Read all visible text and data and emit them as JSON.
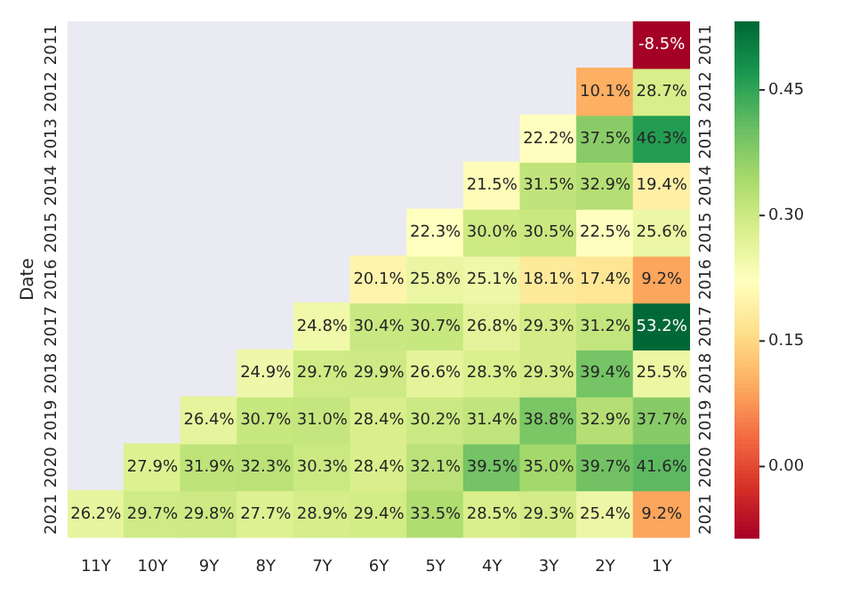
{
  "chart_data": {
    "type": "heatmap",
    "ylabel": "Date",
    "categories": [
      "11Y",
      "10Y",
      "9Y",
      "8Y",
      "7Y",
      "6Y",
      "5Y",
      "4Y",
      "3Y",
      "2Y",
      "1Y"
    ],
    "y_categories": [
      "2011",
      "2012",
      "2013",
      "2014",
      "2015",
      "2016",
      "2017",
      "2018",
      "2019",
      "2020",
      "2021"
    ],
    "y2_categories": [
      "2011",
      "2012",
      "2013",
      "2014",
      "2015",
      "2016",
      "2017",
      "2018",
      "2019",
      "2020",
      "2021"
    ],
    "cells": [
      [
        null,
        null,
        null,
        null,
        null,
        null,
        null,
        null,
        null,
        null,
        -0.085
      ],
      [
        null,
        null,
        null,
        null,
        null,
        null,
        null,
        null,
        null,
        0.101,
        0.287
      ],
      [
        null,
        null,
        null,
        null,
        null,
        null,
        null,
        null,
        0.222,
        0.375,
        0.463
      ],
      [
        null,
        null,
        null,
        null,
        null,
        null,
        null,
        0.215,
        0.315,
        0.329,
        0.194
      ],
      [
        null,
        null,
        null,
        null,
        null,
        null,
        0.223,
        0.3,
        0.305,
        0.225,
        0.256
      ],
      [
        null,
        null,
        null,
        null,
        null,
        0.201,
        0.258,
        0.251,
        0.181,
        0.174,
        0.092
      ],
      [
        null,
        null,
        null,
        null,
        0.248,
        0.304,
        0.307,
        0.268,
        0.293,
        0.312,
        0.532
      ],
      [
        null,
        null,
        null,
        0.249,
        0.297,
        0.299,
        0.266,
        0.283,
        0.293,
        0.394,
        0.255
      ],
      [
        null,
        null,
        0.264,
        0.307,
        0.31,
        0.284,
        0.302,
        0.314,
        0.388,
        0.329,
        0.377
      ],
      [
        null,
        0.279,
        0.319,
        0.323,
        0.303,
        0.284,
        0.321,
        0.395,
        0.35,
        0.397,
        0.416
      ],
      [
        0.262,
        0.297,
        0.298,
        0.277,
        0.289,
        0.294,
        0.335,
        0.285,
        0.293,
        0.254,
        0.092
      ]
    ],
    "cell_labels": [
      [
        null,
        null,
        null,
        null,
        null,
        null,
        null,
        null,
        null,
        null,
        "-8.5%"
      ],
      [
        null,
        null,
        null,
        null,
        null,
        null,
        null,
        null,
        null,
        "10.1%",
        "28.7%"
      ],
      [
        null,
        null,
        null,
        null,
        null,
        null,
        null,
        null,
        "22.2%",
        "37.5%",
        "46.3%"
      ],
      [
        null,
        null,
        null,
        null,
        null,
        null,
        null,
        "21.5%",
        "31.5%",
        "32.9%",
        "19.4%"
      ],
      [
        null,
        null,
        null,
        null,
        null,
        null,
        "22.3%",
        "30.0%",
        "30.5%",
        "22.5%",
        "25.6%"
      ],
      [
        null,
        null,
        null,
        null,
        null,
        "20.1%",
        "25.8%",
        "25.1%",
        "18.1%",
        "17.4%",
        "9.2%"
      ],
      [
        null,
        null,
        null,
        null,
        "24.8%",
        "30.4%",
        "30.7%",
        "26.8%",
        "29.3%",
        "31.2%",
        "53.2%"
      ],
      [
        null,
        null,
        null,
        "24.9%",
        "29.7%",
        "29.9%",
        "26.6%",
        "28.3%",
        "29.3%",
        "39.4%",
        "25.5%"
      ],
      [
        null,
        null,
        "26.4%",
        "30.7%",
        "31.0%",
        "28.4%",
        "30.2%",
        "31.4%",
        "38.8%",
        "32.9%",
        "37.7%"
      ],
      [
        null,
        "27.9%",
        "31.9%",
        "32.3%",
        "30.3%",
        "28.4%",
        "32.1%",
        "39.5%",
        "35.0%",
        "39.7%",
        "41.6%"
      ],
      [
        "26.2%",
        "29.7%",
        "29.8%",
        "27.7%",
        "28.9%",
        "29.4%",
        "33.5%",
        "28.5%",
        "29.3%",
        "25.4%",
        "9.2%"
      ]
    ],
    "clim": [
      -0.085,
      0.532
    ],
    "cticks": [
      {
        "value": 0,
        "label": "0.00"
      },
      {
        "value": 0.15,
        "label": "0.15"
      },
      {
        "value": 0.3,
        "label": "0.30"
      },
      {
        "value": 0.45,
        "label": "0.45"
      }
    ]
  }
}
